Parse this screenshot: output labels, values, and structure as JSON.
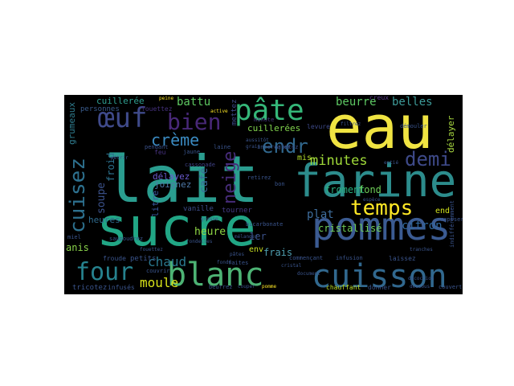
{
  "words": [
    {
      "text": "lait",
      "color": "#2a9d8f"
    },
    {
      "text": "sucre",
      "color": "#21a685"
    },
    {
      "text": "eau",
      "color": "#f0e442"
    },
    {
      "text": "farine",
      "color": "#2c8c8c"
    },
    {
      "text": "pommes",
      "color": "#3b5b92"
    },
    {
      "text": "blanc",
      "color": "#4db374"
    },
    {
      "text": "cuisson",
      "color": "#31688e"
    },
    {
      "text": "four",
      "color": "#26828e"
    },
    {
      "text": "pâte",
      "color": "#35b779"
    },
    {
      "text": "œuf",
      "color": "#3f4a8a"
    },
    {
      "text": "bien",
      "color": "#482878"
    },
    {
      "text": "temps",
      "color": "#fde725"
    },
    {
      "text": "demi",
      "color": "#3e4a89"
    },
    {
      "text": "cuisez",
      "color": "#2d708e"
    },
    {
      "text": "neige",
      "color": "#472c7a"
    },
    {
      "text": "endr",
      "color": "#31688e"
    },
    {
      "text": "crème",
      "color": "#3b8bc2"
    },
    {
      "text": "minutes",
      "color": "#a0da39"
    },
    {
      "text": "moule",
      "color": "#d8e219"
    },
    {
      "text": "chaud",
      "color": "#2a788e"
    },
    {
      "text": "battu",
      "color": "#5ec962"
    },
    {
      "text": "beurre",
      "color": "#5dc863"
    },
    {
      "text": "belles",
      "color": "#3d9a98"
    },
    {
      "text": "cuillerée",
      "color": "#2f9e8f"
    },
    {
      "text": "cuillerées",
      "color": "#81d34d"
    },
    {
      "text": "soupe",
      "color": "#3b528b"
    },
    {
      "text": "plat",
      "color": "#3e6d9c"
    },
    {
      "text": "citron",
      "color": "#31689e"
    },
    {
      "text": "cristallisé",
      "color": "#70cf57"
    },
    {
      "text": "froment",
      "color": "#29af7f"
    },
    {
      "text": "fond",
      "color": "#6ece58"
    },
    {
      "text": "délayez",
      "color": "#6a5acd"
    },
    {
      "text": "joignez",
      "color": "#4e79a7"
    },
    {
      "text": "café",
      "color": "#3a6a9a"
    },
    {
      "text": "heure",
      "color": "#8fd744"
    },
    {
      "text": "frais",
      "color": "#4f9fb0"
    },
    {
      "text": "1er",
      "color": "#3b528b"
    },
    {
      "text": "anis",
      "color": "#8ad24b"
    },
    {
      "text": "froid",
      "color": "#2c728e"
    },
    {
      "text": "heures",
      "color": "#2f6b8e"
    },
    {
      "text": "litre",
      "color": "#3a5aa0"
    },
    {
      "text": "grumeaux",
      "color": "#2f7c8e"
    },
    {
      "text": "délayer",
      "color": "#a8d840"
    },
    {
      "text": "mis",
      "color": "#b5de2b"
    },
    {
      "text": "end",
      "color": "#d0e11c"
    },
    {
      "text": "env",
      "color": "#c9e020"
    },
    {
      "text": "vanille",
      "color": "#3d4d8a"
    },
    {
      "text": "tourner",
      "color": "#443b84"
    },
    {
      "text": "creux",
      "color": "#5a3d8a"
    },
    {
      "text": "feu",
      "color": "#46327e"
    },
    {
      "text": "pendant",
      "color": "#3b528b"
    },
    {
      "text": "ajoutez",
      "color": "#3b528b"
    },
    {
      "text": "jaune",
      "color": "#3a548c"
    },
    {
      "text": "cassonade",
      "color": "#404387"
    },
    {
      "text": "personnes",
      "color": "#3a5b8c"
    },
    {
      "text": "fouettez",
      "color": "#46327e"
    },
    {
      "text": "mettez",
      "color": "#3e4a89"
    },
    {
      "text": "levure",
      "color": "#3e4a89"
    },
    {
      "text": "minute",
      "color": "#44397f"
    },
    {
      "text": "saupoudrez",
      "color": "#3a548c"
    },
    {
      "text": "petits",
      "color": "#3a548c"
    },
    {
      "text": "froude",
      "color": "#3a548c"
    },
    {
      "text": "tricotez",
      "color": "#3a548c"
    },
    {
      "text": "infusés",
      "color": "#3a548c"
    },
    {
      "text": "chauffant",
      "color": "#bddf26"
    },
    {
      "text": "donner",
      "color": "#3a548c"
    },
    {
      "text": "couvert",
      "color": "#3a548c"
    },
    {
      "text": "commençant",
      "color": "#3a548c"
    },
    {
      "text": "laissez",
      "color": "#3a548c"
    },
    {
      "text": "indifféremment",
      "color": "#3a548c"
    },
    {
      "text": "infusion",
      "color": "#3a548c"
    },
    {
      "text": "bicarbonate",
      "color": "#3a548c"
    },
    {
      "text": "cristal",
      "color": "#3a548c"
    },
    {
      "text": "dessous",
      "color": "#3a548c"
    },
    {
      "text": "miel",
      "color": "#3a548c"
    },
    {
      "text": "reposer",
      "color": "#3a548c"
    },
    {
      "text": "retirez",
      "color": "#3a548c"
    },
    {
      "text": "bon",
      "color": "#3a548c"
    },
    {
      "text": "laine",
      "color": "#3a548c"
    },
    {
      "text": "grain",
      "color": "#3a548c"
    },
    {
      "text": "aussitôt",
      "color": "#3a548c"
    },
    {
      "text": "intercaler",
      "color": "#3a548c"
    },
    {
      "text": "active",
      "color": "#fde725"
    },
    {
      "text": "peine",
      "color": "#fde725"
    },
    {
      "text": "décoction",
      "color": "#3a548c"
    },
    {
      "text": "pomme",
      "color": "#fde725"
    },
    {
      "text": "couper",
      "color": "#3a548c"
    },
    {
      "text": "fouettez",
      "color": "#3a548c"
    },
    {
      "text": "entié",
      "color": "#3a548c"
    },
    {
      "text": "filtrez",
      "color": "#3a548c"
    },
    {
      "text": "démouler",
      "color": "#3a548c"
    },
    {
      "text": "couvrir",
      "color": "#3a548c"
    },
    {
      "text": "beurrez",
      "color": "#3a548c"
    },
    {
      "text": "tranches",
      "color": "#3a548c"
    },
    {
      "text": "document",
      "color": "#3a548c"
    },
    {
      "text": "faites",
      "color": "#3a548c"
    },
    {
      "text": "fondu",
      "color": "#3a548c"
    },
    {
      "text": "pâtes",
      "color": "#3a548c"
    },
    {
      "text": "pétrir",
      "color": "#3a548c"
    },
    {
      "text": "mélangez",
      "color": "#3a548c"
    },
    {
      "text": "rondelles",
      "color": "#3a548c"
    },
    {
      "text": "grosse",
      "color": "#3a548c"
    },
    {
      "text": "espèce",
      "color": "#3a548c"
    }
  ]
}
